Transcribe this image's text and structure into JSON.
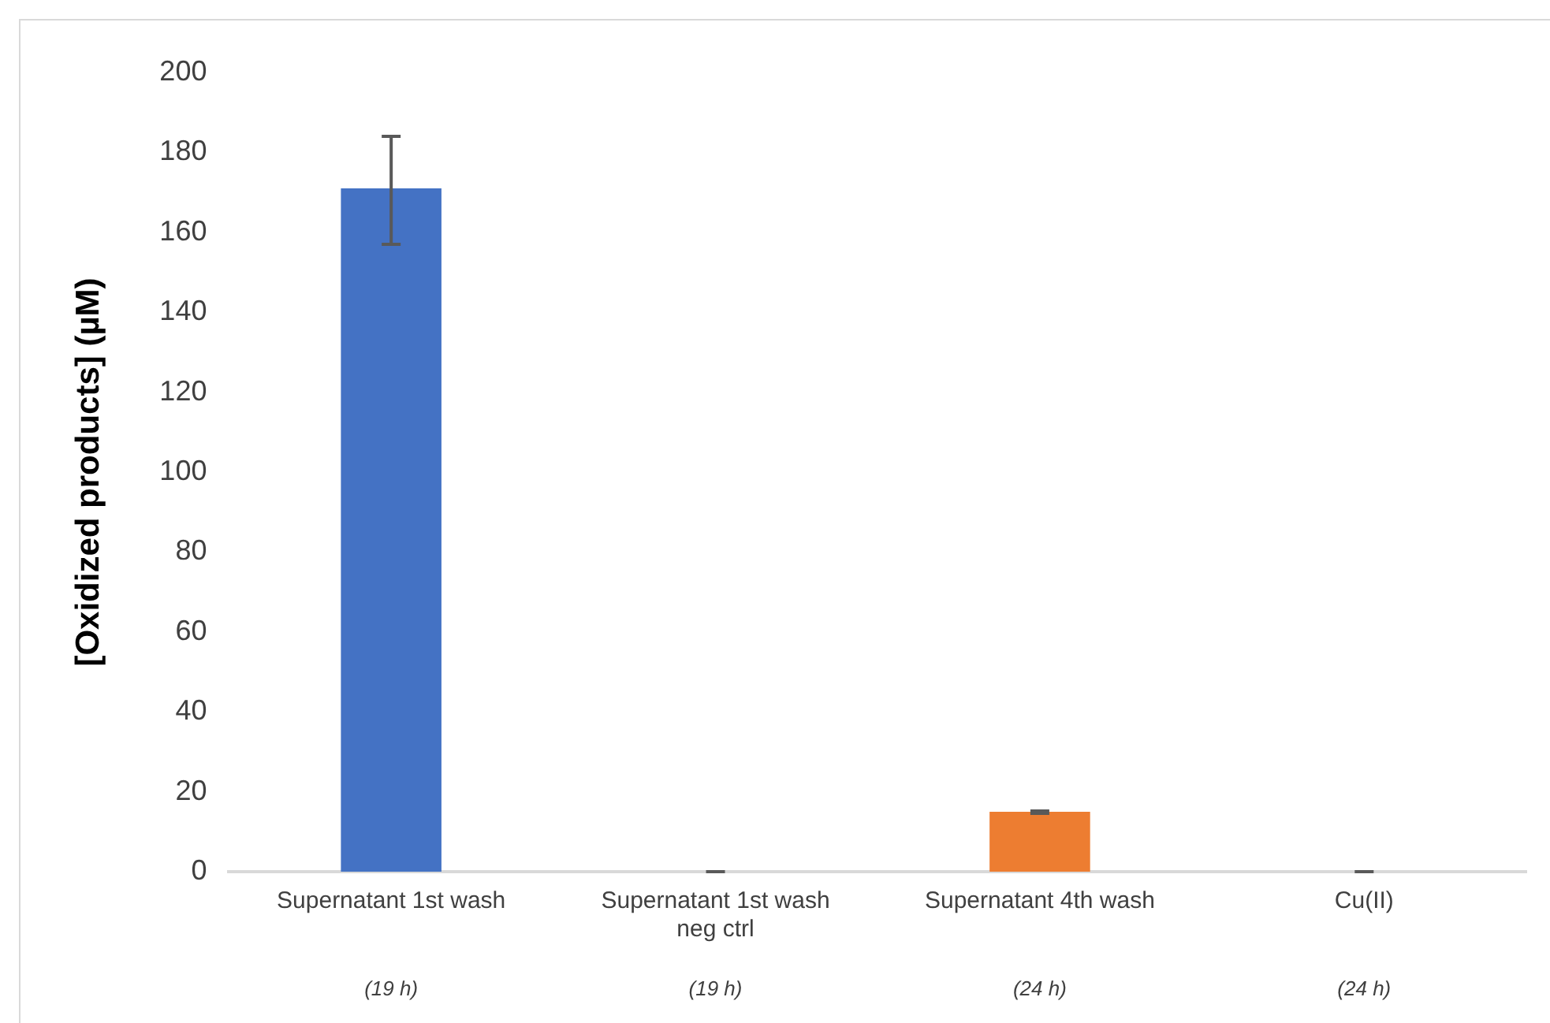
{
  "chart_data": {
    "type": "bar",
    "ylabel": "[Oxidized products] (µM)",
    "categories": [
      "Supernatant 1st wash",
      "Supernatant 1st wash neg ctrl",
      "Supernatant 4th wash",
      "Cu(II)"
    ],
    "values": [
      171,
      0,
      15,
      0
    ],
    "colors": [
      "#4472c4",
      "#4472c4",
      "#ed7d31",
      "#ed7d31"
    ],
    "errors": [
      [
        157,
        184
      ],
      0,
      [
        14.6,
        15.2
      ],
      0
    ],
    "ylim": [
      0,
      200
    ],
    "yticks": [
      0,
      20,
      40,
      60,
      80,
      100,
      120,
      140,
      160,
      180,
      200
    ],
    "grid": false,
    "legend": false,
    "annotations": [
      "(19 h)",
      "(19 h)",
      "(24 h)",
      "(24 h)"
    ]
  }
}
